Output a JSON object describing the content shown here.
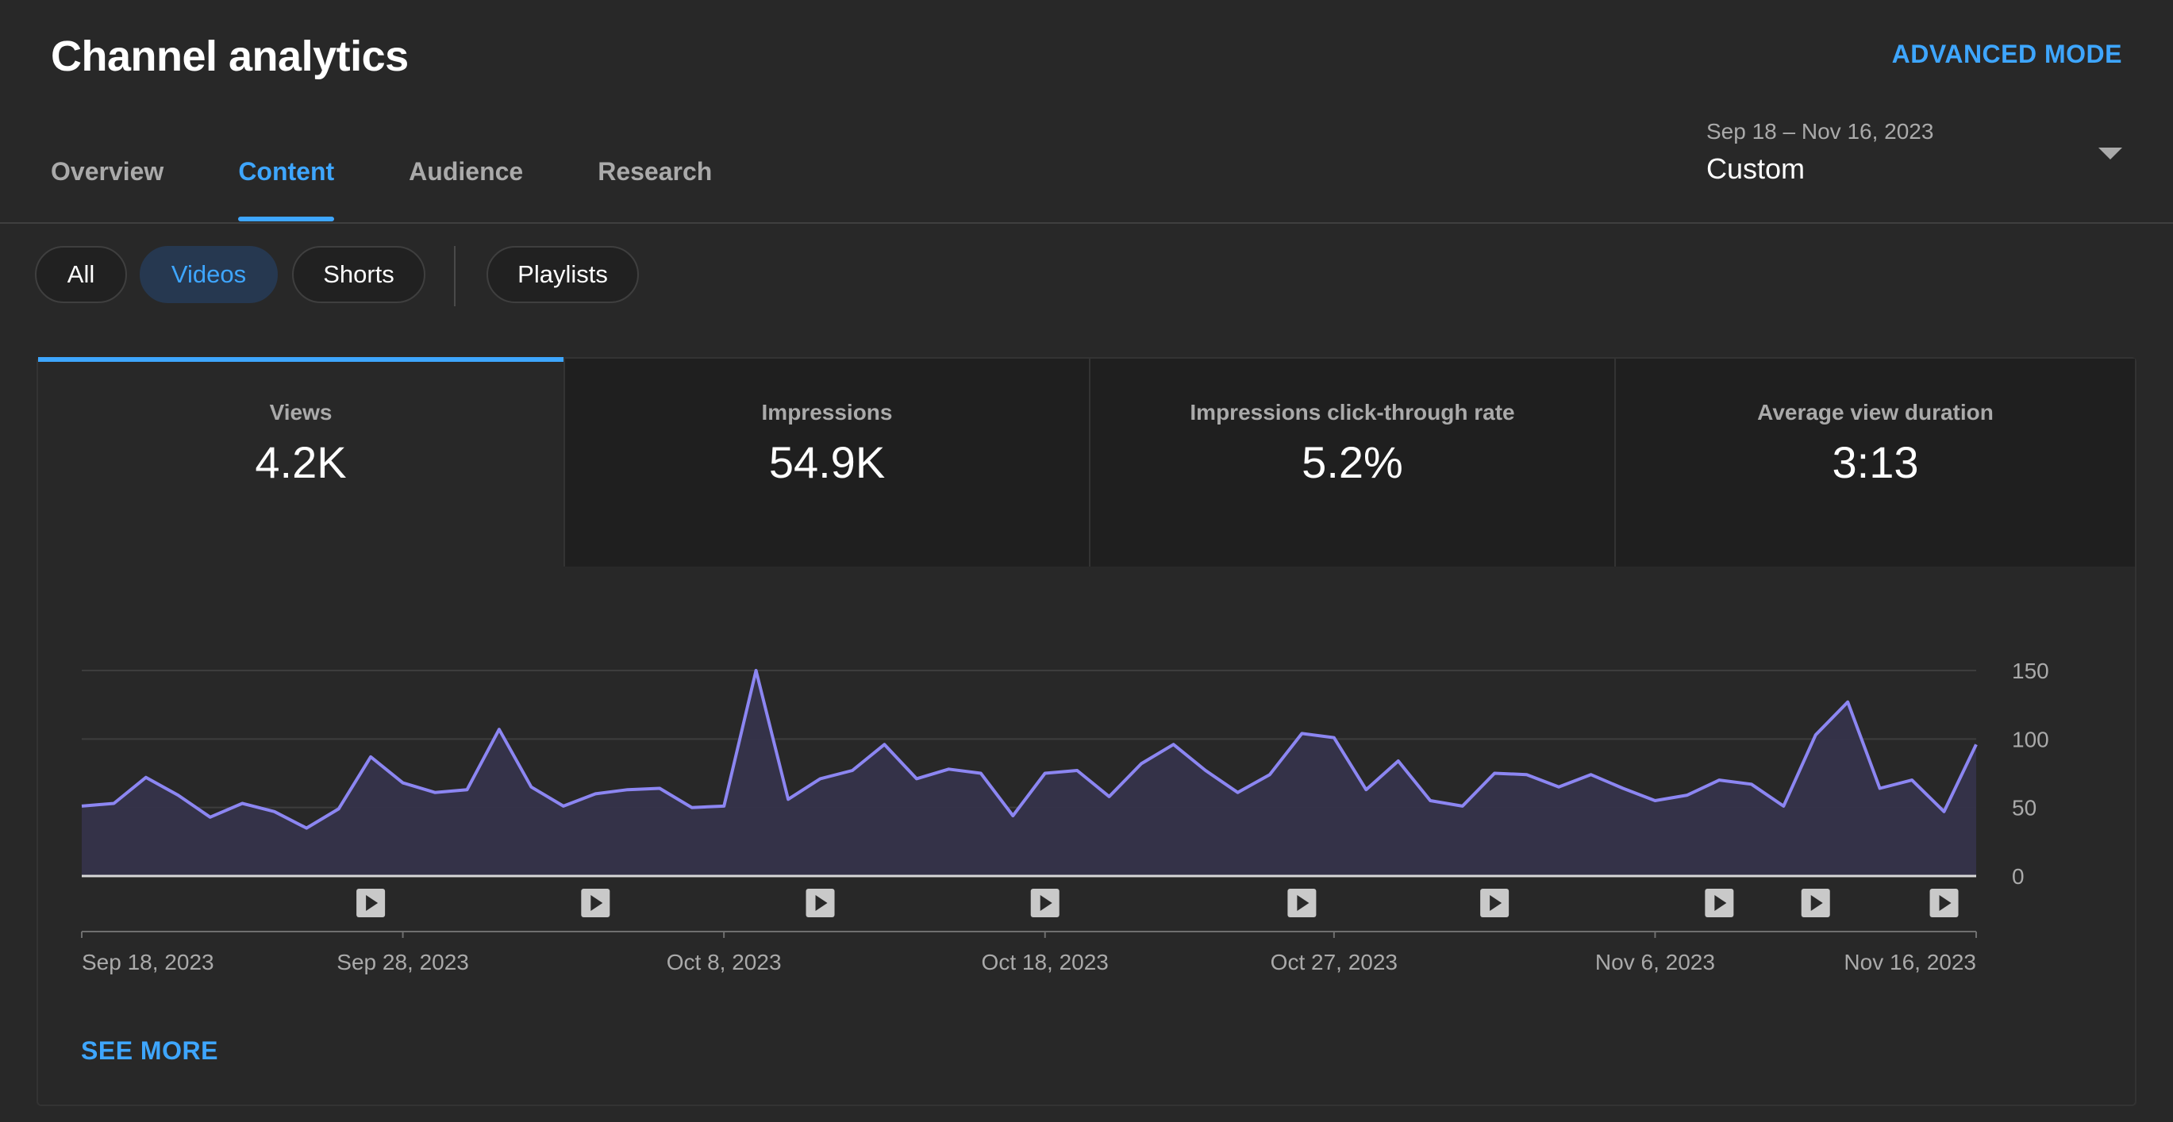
{
  "page_title": "Channel analytics",
  "advanced_mode_label": "ADVANCED MODE",
  "tabs": [
    {
      "label": "Overview",
      "active": false
    },
    {
      "label": "Content",
      "active": true
    },
    {
      "label": "Audience",
      "active": false
    },
    {
      "label": "Research",
      "active": false
    }
  ],
  "date_range": {
    "range": "Sep 18 – Nov 16, 2023",
    "preset": "Custom"
  },
  "filter_chips": [
    {
      "label": "All",
      "active": false
    },
    {
      "label": "Videos",
      "active": true
    },
    {
      "label": "Shorts",
      "active": false
    },
    {
      "label": "Playlists",
      "active": false
    }
  ],
  "metrics": [
    {
      "label": "Views",
      "value": "4.2K",
      "active": true
    },
    {
      "label": "Impressions",
      "value": "54.9K",
      "active": false
    },
    {
      "label": "Impressions click-through rate",
      "value": "5.2%",
      "active": false
    },
    {
      "label": "Average view duration",
      "value": "3:13",
      "active": false
    }
  ],
  "see_more_label": "SEE MORE",
  "colors": {
    "accent": "#3ea6ff",
    "line": "#8c86f2",
    "area": "#35334a",
    "background": "#282828",
    "card_inactive": "#1f1f1f"
  },
  "chart_data": {
    "type": "area",
    "title": "",
    "series": [
      {
        "values": [
          51,
          53,
          72,
          59,
          43,
          53,
          47,
          35,
          49,
          87,
          68,
          61,
          63,
          107,
          65,
          51,
          60,
          63,
          64,
          50,
          51,
          150,
          56,
          71,
          77,
          96,
          71,
          78,
          75,
          44,
          75,
          77,
          58,
          82,
          96,
          77,
          61,
          74,
          104,
          101,
          63,
          84,
          55,
          51,
          75,
          74,
          65,
          74,
          64,
          55,
          59,
          70,
          67,
          51,
          103,
          127,
          64,
          70,
          47,
          96
        ]
      }
    ],
    "x_start": "Sep 18, 2023",
    "x_end": "Nov 16, 2023",
    "x_tick_labels": [
      {
        "label": "Sep 18, 2023",
        "index": 0
      },
      {
        "label": "Sep 28, 2023",
        "index": 10
      },
      {
        "label": "Oct 8, 2023",
        "index": 20
      },
      {
        "label": "Oct 18, 2023",
        "index": 30
      },
      {
        "label": "Oct 27, 2023",
        "index": 39
      },
      {
        "label": "Nov 6, 2023",
        "index": 49
      },
      {
        "label": "Nov 16, 2023",
        "index": 59
      }
    ],
    "y_ticks": [
      "0",
      "50",
      "100",
      "150"
    ],
    "ylim": [
      0,
      150
    ],
    "grid": true,
    "video_publish_markers": [
      9,
      16,
      23,
      30,
      38,
      44,
      51,
      54,
      58
    ],
    "marker_icon": "play-icon"
  }
}
